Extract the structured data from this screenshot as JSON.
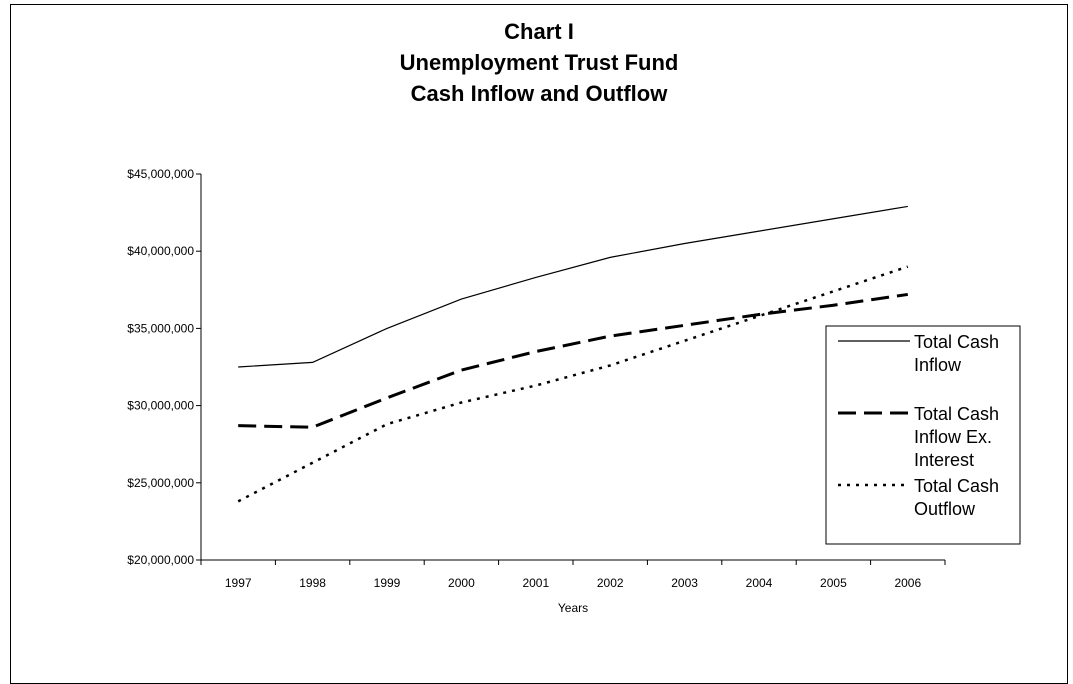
{
  "chart_data": {
    "type": "line",
    "title_lines": [
      "Chart I",
      "Unemployment Trust Fund",
      "Cash Inflow and Outflow"
    ],
    "xlabel": "Years",
    "ylabel": "",
    "categories": [
      "1997",
      "1998",
      "1999",
      "2000",
      "2001",
      "2002",
      "2003",
      "2004",
      "2005",
      "2006"
    ],
    "ylim": [
      20000000,
      45000000
    ],
    "yticks": [
      20000000,
      25000000,
      30000000,
      35000000,
      40000000,
      45000000
    ],
    "ytick_labels": [
      "$20,000,000",
      "$25,000,000",
      "$30,000,000",
      "$35,000,000",
      "$40,000,000",
      "$45,000,000"
    ],
    "grid": false,
    "legend_position": "right",
    "series": [
      {
        "name": "Total Cash Inflow",
        "legend_lines": [
          "Total Cash",
          "Inflow"
        ],
        "style": "solid",
        "values": [
          32500000,
          32800000,
          35000000,
          36900000,
          38300000,
          39600000,
          40500000,
          41300000,
          42100000,
          42900000
        ]
      },
      {
        "name": "Total Cash Inflow Ex. Interest",
        "legend_lines": [
          "Total Cash",
          "Inflow Ex.",
          "Interest"
        ],
        "style": "dashed",
        "values": [
          28700000,
          28600000,
          30500000,
          32300000,
          33500000,
          34500000,
          35200000,
          35900000,
          36500000,
          37200000
        ]
      },
      {
        "name": "Total Cash Outflow",
        "legend_lines": [
          "Total Cash",
          "Outflow"
        ],
        "style": "dotted",
        "values": [
          23800000,
          26300000,
          28800000,
          30200000,
          31300000,
          32600000,
          34200000,
          35800000,
          37400000,
          39000000
        ]
      }
    ]
  }
}
